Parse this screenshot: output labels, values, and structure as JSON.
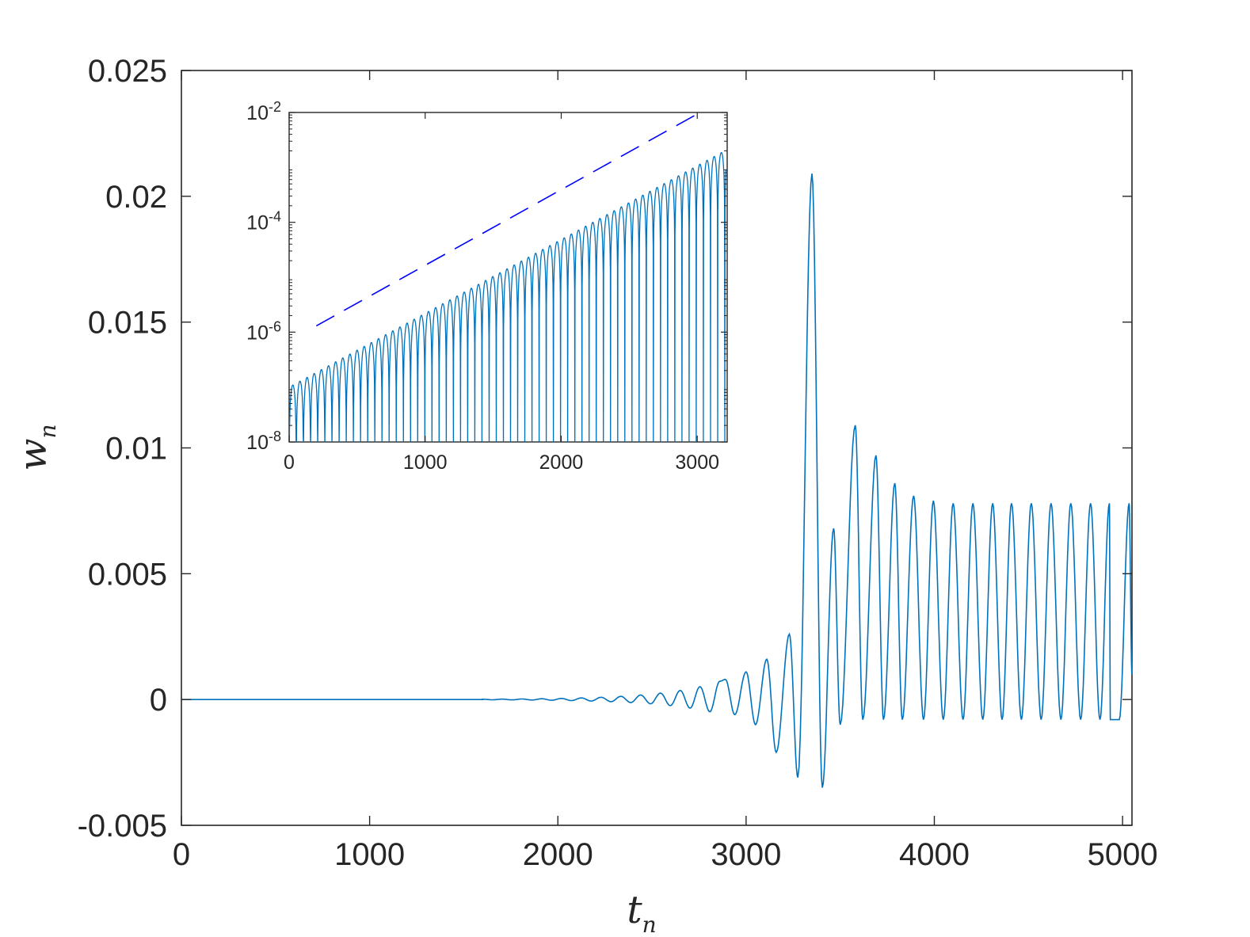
{
  "chart_data": [
    {
      "type": "line",
      "xlabel": "t",
      "xlabel_subscript": "n",
      "ylabel": "w",
      "ylabel_subscript": "n",
      "xlim": [
        0,
        5050
      ],
      "ylim": [
        -0.005,
        0.025
      ],
      "x_ticks": [
        "0",
        "1000",
        "2000",
        "3000",
        "4000",
        "5000"
      ],
      "y_ticks": [
        "0.025",
        "0.02",
        "0.015",
        "0.01",
        "0.005",
        "0",
        "-0.005"
      ],
      "grid": false,
      "line_color": "#0072bd",
      "series": [
        {
          "description_values": "oscillation peaks (x, y)",
          "peaks": [
            [
              2890,
              0.0008
            ],
            [
              3000,
              0.0011
            ],
            [
              3110,
              0.0016
            ],
            [
              3230,
              0.0026
            ],
            [
              3350,
              0.0209
            ],
            [
              3465,
              0.0068
            ],
            [
              3580,
              0.0109
            ],
            [
              3690,
              0.0097
            ],
            [
              3790,
              0.0086
            ],
            [
              3890,
              0.0081
            ],
            [
              3995,
              0.0079
            ],
            [
              4100,
              0.0078
            ],
            [
              4205,
              0.0078
            ],
            [
              4310,
              0.0078
            ],
            [
              4410,
              0.0078
            ],
            [
              4515,
              0.0078
            ],
            [
              4620,
              0.0078
            ],
            [
              4725,
              0.0078
            ],
            [
              4830,
              0.0078
            ],
            [
              4930,
              0.0078
            ],
            [
              5035,
              0.0078
            ]
          ],
          "troughs": [
            [
              2940,
              -0.0006
            ],
            [
              3050,
              -0.001
            ],
            [
              3160,
              -0.0021
            ],
            [
              3275,
              -0.0031
            ],
            [
              3405,
              -0.0035
            ],
            [
              3500,
              -0.001
            ],
            [
              3620,
              -0.0008
            ],
            [
              3730,
              -0.0008
            ],
            [
              3830,
              -0.0008
            ],
            [
              4935,
              -0.0008
            ]
          ]
        }
      ]
    },
    {
      "type": "line",
      "inset": true,
      "yscale": "log",
      "xlim": [
        0,
        3220
      ],
      "ylim": [
        1e-08,
        0.01
      ],
      "x_ticks": [
        "0",
        "1000",
        "2000",
        "3000"
      ],
      "y_ticks": [
        {
          "base": "10",
          "exp": "-2"
        },
        {
          "base": "10",
          "exp": "-4"
        },
        {
          "base": "10",
          "exp": "-6"
        },
        {
          "base": "10",
          "exp": "-8"
        }
      ],
      "grid": false,
      "series": [
        {
          "style": "solid",
          "color": "#0072bd",
          "envelope_start": [
            0,
            1e-07
          ],
          "envelope_end": [
            3200,
            0.002
          ],
          "oscillation_period": 52.5
        },
        {
          "style": "dashed",
          "color": "#0000ff",
          "x": [
            200,
            3020
          ],
          "y": [
            1.3e-06,
            0.01
          ]
        }
      ]
    }
  ]
}
